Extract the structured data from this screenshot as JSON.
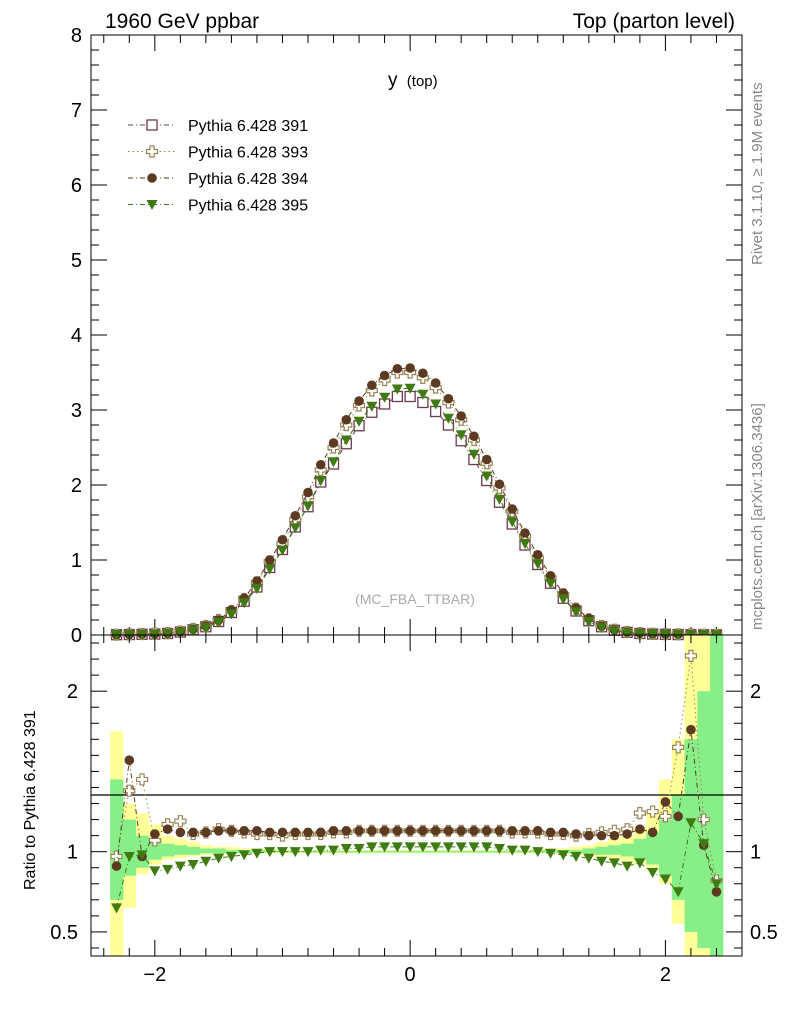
{
  "header": {
    "left_title": "1960 GeV ppbar",
    "right_title": "Top (parton level)"
  },
  "side_labels": {
    "rivet": "Rivet 3.1.10, ≥ 1.9M events",
    "mcplots": "mcplots.cern.ch [arXiv:1306.3436]"
  },
  "chart_data": [
    {
      "type": "scatter",
      "panel": "main",
      "title": "y",
      "title_sub": "(top)",
      "watermark": "(MC_FBA_TTBAR)",
      "xlim": [
        -2.5,
        2.6
      ],
      "ylim": [
        0,
        8
      ],
      "y_ticks": [
        "0",
        "1",
        "2",
        "3",
        "4",
        "5",
        "6",
        "7",
        "8"
      ],
      "legend": "top-left",
      "x": [
        -2.3,
        -2.2,
        -2.1,
        -2.0,
        -1.9,
        -1.8,
        -1.7,
        -1.6,
        -1.5,
        -1.4,
        -1.3,
        -1.2,
        -1.1,
        -1.0,
        -0.9,
        -0.8,
        -0.7,
        -0.6,
        -0.5,
        -0.4,
        -0.3,
        -0.2,
        -0.1,
        0.0,
        0.1,
        0.2,
        0.3,
        0.4,
        0.5,
        0.6,
        0.7,
        0.8,
        0.9,
        1.0,
        1.1,
        1.2,
        1.3,
        1.4,
        1.5,
        1.6,
        1.7,
        1.8,
        1.9,
        2.0,
        2.1,
        2.2,
        2.3,
        2.4
      ],
      "series": [
        {
          "name": "Pythia 6.428 391",
          "marker": "open-square",
          "color": "#6b3a4e",
          "linestyle": "dashdot",
          "values": [
            0.004,
            0.006,
            0.009,
            0.013,
            0.02,
            0.04,
            0.07,
            0.11,
            0.18,
            0.3,
            0.45,
            0.64,
            0.9,
            1.14,
            1.44,
            1.71,
            2.04,
            2.28,
            2.55,
            2.79,
            2.97,
            3.08,
            3.18,
            3.18,
            3.1,
            2.98,
            2.8,
            2.59,
            2.34,
            2.06,
            1.77,
            1.48,
            1.2,
            0.94,
            0.69,
            0.49,
            0.32,
            0.19,
            0.11,
            0.063,
            0.035,
            0.02,
            0.013,
            0.009,
            0.006,
            0.004,
            0.003,
            0.002
          ]
        },
        {
          "name": "Pythia 6.428 393",
          "marker": "open-cross",
          "color": "#9a8455",
          "linestyle": "dotted",
          "values": [
            0.004,
            0.008,
            0.013,
            0.019,
            0.025,
            0.045,
            0.08,
            0.12,
            0.2,
            0.32,
            0.48,
            0.7,
            0.98,
            1.22,
            1.54,
            1.84,
            2.2,
            2.5,
            2.8,
            3.06,
            3.26,
            3.4,
            3.5,
            3.5,
            3.43,
            3.3,
            3.1,
            2.87,
            2.6,
            2.29,
            1.96,
            1.65,
            1.32,
            1.03,
            0.76,
            0.54,
            0.35,
            0.21,
            0.12,
            0.07,
            0.04,
            0.024,
            0.017,
            0.012,
            0.009,
            0.008,
            0.006,
            0.004
          ]
        },
        {
          "name": "Pythia 6.428 394",
          "marker": "filled-circle",
          "color": "#5c3a22",
          "linestyle": "dashdot",
          "values": [
            0.004,
            0.009,
            0.012,
            0.015,
            0.022,
            0.044,
            0.078,
            0.12,
            0.2,
            0.33,
            0.49,
            0.72,
            1.0,
            1.27,
            1.59,
            1.9,
            2.27,
            2.56,
            2.87,
            3.12,
            3.33,
            3.46,
            3.55,
            3.56,
            3.49,
            3.36,
            3.15,
            2.92,
            2.65,
            2.34,
            2.01,
            1.68,
            1.36,
            1.07,
            0.79,
            0.56,
            0.36,
            0.22,
            0.12,
            0.07,
            0.04,
            0.026,
            0.017,
            0.012,
            0.01,
            0.007,
            0.005,
            0.003
          ]
        },
        {
          "name": "Pythia 6.428 395",
          "marker": "filled-triangle-down",
          "color": "#3f7a12",
          "linestyle": "dashdot",
          "values": [
            0.003,
            0.006,
            0.008,
            0.011,
            0.017,
            0.035,
            0.062,
            0.1,
            0.17,
            0.28,
            0.43,
            0.62,
            0.88,
            1.13,
            1.43,
            1.72,
            2.06,
            2.31,
            2.6,
            2.85,
            3.05,
            3.17,
            3.28,
            3.29,
            3.21,
            3.08,
            2.89,
            2.67,
            2.41,
            2.12,
            1.81,
            1.51,
            1.22,
            0.95,
            0.69,
            0.48,
            0.31,
            0.18,
            0.1,
            0.055,
            0.03,
            0.017,
            0.011,
            0.008,
            0.005,
            0.004,
            0.003,
            0.002
          ]
        }
      ]
    },
    {
      "type": "scatter",
      "panel": "ratio",
      "ylabel": "Ratio to Pythia 6.428 391",
      "xlim": [
        -2.5,
        2.6
      ],
      "ylim": [
        0.35,
        2.35
      ],
      "x_ticks": [
        "−2",
        "0",
        "2"
      ],
      "y_ticks": [
        "0.5",
        "1",
        "2"
      ],
      "reference_line": 1,
      "x": [
        -2.3,
        -2.2,
        -2.1,
        -2.0,
        -1.9,
        -1.8,
        -1.7,
        -1.6,
        -1.5,
        -1.4,
        -1.3,
        -1.2,
        -1.1,
        -1.0,
        -0.9,
        -0.8,
        -0.7,
        -0.6,
        -0.5,
        -0.4,
        -0.3,
        -0.2,
        -0.1,
        0.0,
        0.1,
        0.2,
        0.3,
        0.4,
        0.5,
        0.6,
        0.7,
        0.8,
        0.9,
        1.0,
        1.1,
        1.2,
        1.3,
        1.4,
        1.5,
        1.6,
        1.7,
        1.8,
        1.9,
        2.0,
        2.1,
        2.2,
        2.3,
        2.4
      ],
      "bands": {
        "yellow": [
          [
            0.3,
            1.75
          ],
          [
            0.65,
            1.3
          ],
          [
            0.86,
            1.24
          ],
          [
            0.92,
            1.17
          ],
          [
            0.95,
            1.1
          ],
          [
            0.96,
            1.08
          ],
          [
            0.97,
            1.06
          ],
          [
            0.98,
            1.04
          ],
          [
            0.98,
            1.03
          ],
          [
            0.99,
            1.03
          ],
          [
            0.99,
            1.02
          ],
          [
            0.99,
            1.02
          ],
          [
            0.99,
            1.02
          ],
          [
            0.99,
            1.01
          ],
          [
            0.99,
            1.01
          ],
          [
            0.99,
            1.01
          ],
          [
            0.99,
            1.01
          ],
          [
            0.99,
            1.01
          ],
          [
            0.99,
            1.01
          ],
          [
            0.99,
            1.01
          ],
          [
            0.99,
            1.01
          ],
          [
            0.99,
            1.01
          ],
          [
            0.99,
            1.01
          ],
          [
            0.99,
            1.01
          ],
          [
            0.99,
            1.01
          ],
          [
            0.99,
            1.01
          ],
          [
            0.99,
            1.01
          ],
          [
            0.99,
            1.01
          ],
          [
            0.99,
            1.01
          ],
          [
            0.99,
            1.01
          ],
          [
            0.99,
            1.01
          ],
          [
            0.99,
            1.01
          ],
          [
            0.99,
            1.01
          ],
          [
            0.99,
            1.02
          ],
          [
            0.99,
            1.02
          ],
          [
            0.99,
            1.02
          ],
          [
            0.98,
            1.03
          ],
          [
            0.97,
            1.04
          ],
          [
            0.96,
            1.06
          ],
          [
            0.95,
            1.08
          ],
          [
            0.94,
            1.1
          ],
          [
            0.92,
            1.15
          ],
          [
            0.88,
            1.25
          ],
          [
            0.8,
            1.45
          ],
          [
            0.55,
            1.7
          ],
          [
            0.3,
            2.35
          ],
          [
            0.3,
            2.35
          ],
          [
            0.3,
            2.35
          ]
        ],
        "green": [
          [
            0.7,
            1.45
          ],
          [
            0.85,
            1.2
          ],
          [
            0.9,
            1.1
          ],
          [
            0.95,
            1.08
          ],
          [
            0.97,
            1.05
          ],
          [
            0.98,
            1.04
          ],
          [
            0.98,
            1.03
          ],
          [
            0.99,
            1.02
          ],
          [
            0.99,
            1.02
          ],
          [
            0.99,
            1.01
          ],
          [
            0.99,
            1.01
          ],
          [
            0.995,
            1.01
          ],
          [
            0.995,
            1.01
          ],
          [
            0.995,
            1.005
          ],
          [
            0.995,
            1.005
          ],
          [
            0.995,
            1.005
          ],
          [
            0.995,
            1.005
          ],
          [
            0.995,
            1.005
          ],
          [
            0.995,
            1.005
          ],
          [
            0.995,
            1.005
          ],
          [
            0.995,
            1.005
          ],
          [
            0.995,
            1.005
          ],
          [
            0.995,
            1.005
          ],
          [
            0.995,
            1.005
          ],
          [
            0.995,
            1.005
          ],
          [
            0.995,
            1.005
          ],
          [
            0.995,
            1.005
          ],
          [
            0.995,
            1.005
          ],
          [
            0.995,
            1.005
          ],
          [
            0.995,
            1.005
          ],
          [
            0.995,
            1.005
          ],
          [
            0.995,
            1.005
          ],
          [
            0.995,
            1.005
          ],
          [
            0.995,
            1.01
          ],
          [
            0.995,
            1.01
          ],
          [
            0.99,
            1.01
          ],
          [
            0.99,
            1.01
          ],
          [
            0.99,
            1.02
          ],
          [
            0.98,
            1.03
          ],
          [
            0.98,
            1.04
          ],
          [
            0.97,
            1.05
          ],
          [
            0.95,
            1.08
          ],
          [
            0.92,
            1.12
          ],
          [
            0.85,
            1.2
          ],
          [
            0.7,
            1.35
          ],
          [
            0.5,
            1.7
          ],
          [
            0.4,
            2.0
          ],
          [
            0.3,
            2.35
          ]
        ]
      },
      "series": [
        {
          "name": "Pythia 6.428 393",
          "values": [
            0.97,
            1.38,
            1.45,
            1.07,
            1.17,
            1.19,
            1.11,
            1.12,
            1.14,
            1.13,
            1.12,
            1.11,
            1.11,
            1.1,
            1.11,
            1.11,
            1.11,
            1.12,
            1.12,
            1.13,
            1.13,
            1.13,
            1.13,
            1.13,
            1.13,
            1.13,
            1.13,
            1.13,
            1.13,
            1.13,
            1.13,
            1.12,
            1.12,
            1.12,
            1.11,
            1.11,
            1.1,
            1.11,
            1.12,
            1.13,
            1.14,
            1.24,
            1.25,
            1.22,
            1.65,
            2.22,
            1.2,
            0.82
          ]
        },
        {
          "name": "Pythia 6.428 394",
          "values": [
            0.91,
            1.57,
            0.97,
            1.11,
            1.14,
            1.12,
            1.12,
            1.12,
            1.13,
            1.13,
            1.13,
            1.13,
            1.12,
            1.12,
            1.12,
            1.12,
            1.12,
            1.13,
            1.13,
            1.13,
            1.13,
            1.13,
            1.13,
            1.13,
            1.13,
            1.13,
            1.13,
            1.13,
            1.13,
            1.13,
            1.13,
            1.13,
            1.13,
            1.13,
            1.12,
            1.12,
            1.11,
            1.1,
            1.1,
            1.1,
            1.11,
            1.14,
            1.12,
            1.31,
            1.22,
            1.76,
            1.04,
            0.75
          ]
        },
        {
          "name": "Pythia 6.428 395",
          "values": [
            0.65,
            0.97,
            0.98,
            0.88,
            0.89,
            0.91,
            0.92,
            0.94,
            0.96,
            0.97,
            0.98,
            0.99,
            1.0,
            1.0,
            1.0,
            1.0,
            1.01,
            1.01,
            1.02,
            1.02,
            1.03,
            1.03,
            1.03,
            1.03,
            1.03,
            1.03,
            1.03,
            1.03,
            1.03,
            1.03,
            1.02,
            1.01,
            1.01,
            1.0,
            0.99,
            0.98,
            0.97,
            0.96,
            0.94,
            0.93,
            0.91,
            0.93,
            0.87,
            0.83,
            0.75,
            1.18,
            1.05,
            0.8
          ]
        }
      ]
    }
  ]
}
